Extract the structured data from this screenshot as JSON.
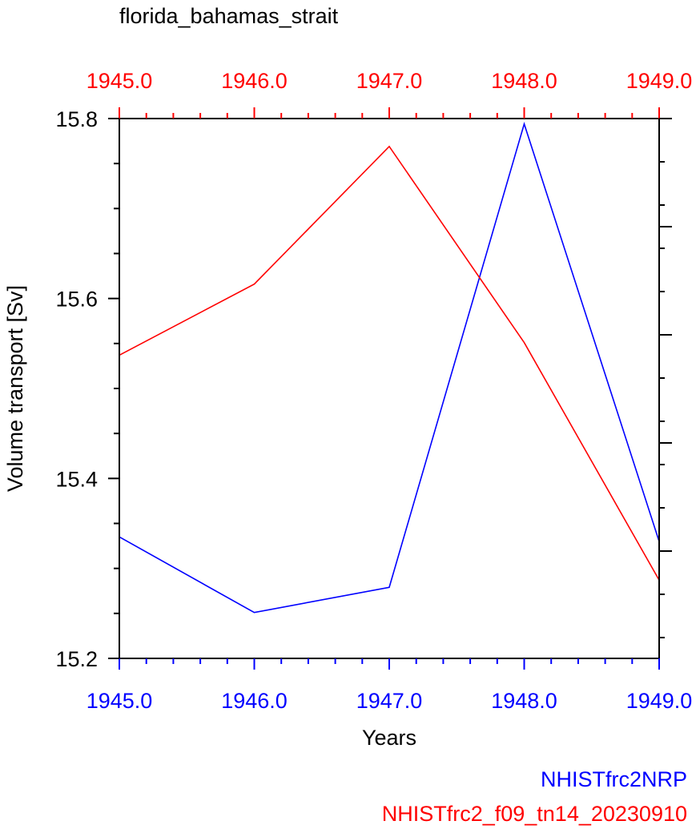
{
  "chart_data": {
    "type": "line",
    "title": "florida_bahamas_strait",
    "xlabel": "Years",
    "ylabel": "Volume transport [Sv]",
    "xlim": [
      1945.0,
      1949.0
    ],
    "ylim": [
      15.2,
      15.8
    ],
    "x_ticks": [
      "1945.0",
      "1946.0",
      "1947.0",
      "1948.0",
      "1949.0"
    ],
    "y_ticks": [
      "15.2",
      "15.4",
      "15.6",
      "15.8"
    ],
    "x": [
      1945.0,
      1946.0,
      1947.0,
      1948.0,
      1949.0
    ],
    "series": [
      {
        "name": "NHISTfrc2NRP",
        "color": "#0000ff",
        "values": [
          15.335,
          15.251,
          15.279,
          15.794,
          15.33
        ]
      },
      {
        "name": "NHISTfrc2_f09_tn14_20230910",
        "color": "#ff0000",
        "values": [
          15.537,
          15.616,
          15.769,
          15.551,
          15.287
        ]
      }
    ],
    "top_axis_color": "#ff0000",
    "bottom_axis_color": "#0000ff",
    "legend_position": "bottom-right"
  }
}
